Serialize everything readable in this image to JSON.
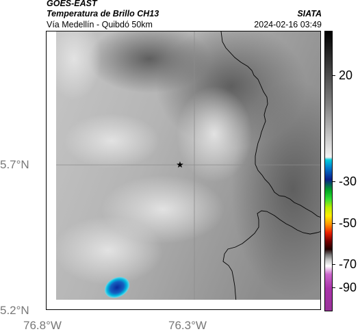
{
  "header": {
    "satellite": "GOES-EAST",
    "product": "Temperatura de Brillo CH13",
    "region": "Vía Medellín - Quibdó 50km",
    "organization": "SIATA",
    "datetime": "2024-02-16 03:49"
  },
  "axes": {
    "lat_ticks": [
      "5.7°N",
      "5.2°N"
    ],
    "lon_ticks": [
      "76.8°W",
      "76.3°W"
    ]
  },
  "colorbar": {
    "labels": [
      "20",
      "-30",
      "-50",
      "-70",
      "-90"
    ]
  },
  "map": {
    "marker": "star-marker",
    "colors": {
      "frame": "#000000",
      "gridline": "#8c8c8c",
      "boundary": "#000000",
      "cold_cloud": "#0a2a9a",
      "cold_cloud_edge": "#00c8d8"
    }
  }
}
